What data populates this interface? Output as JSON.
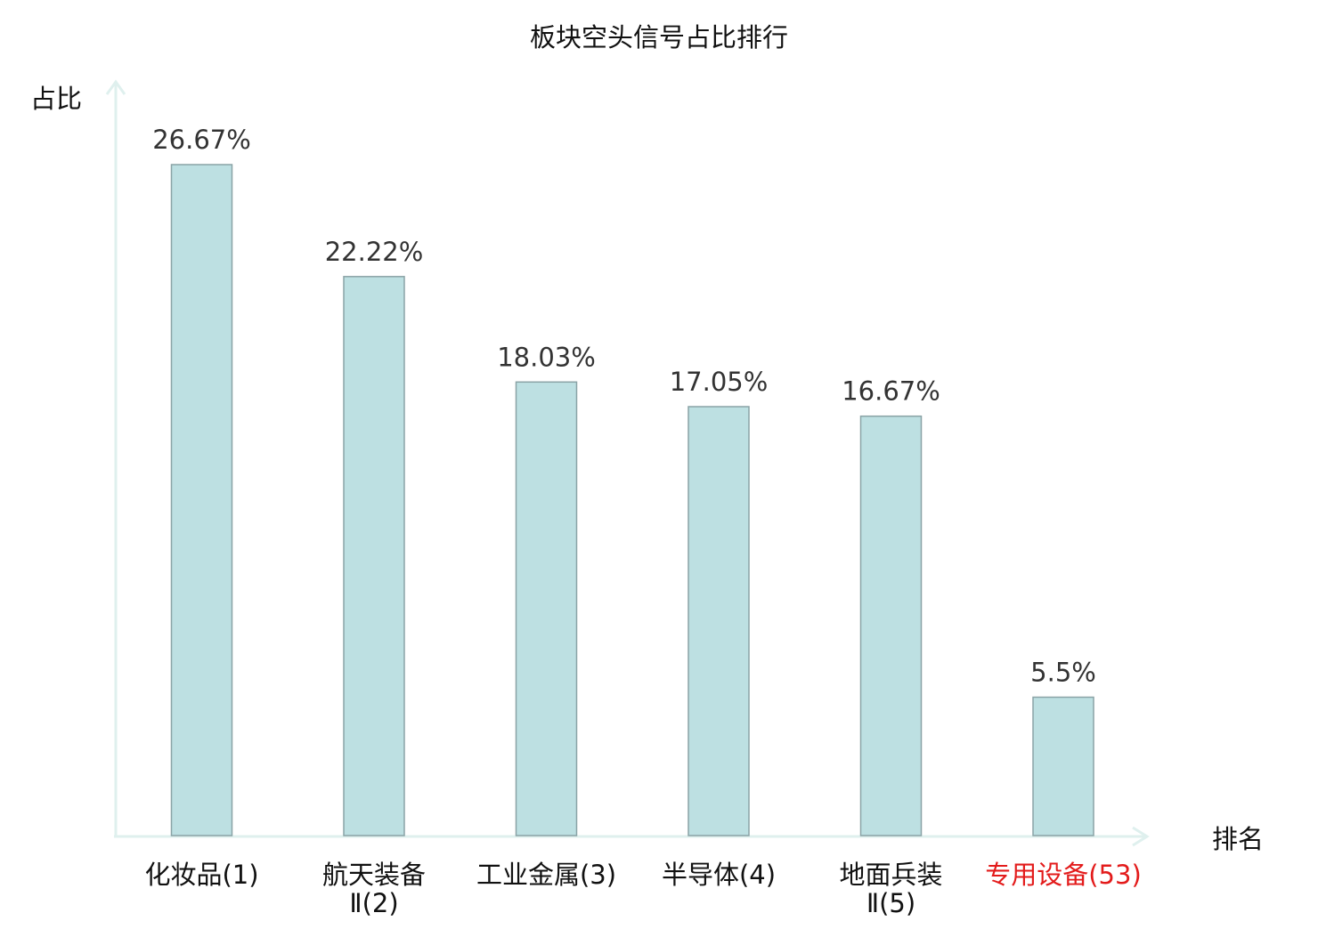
{
  "chart_data": {
    "type": "bar",
    "title": "板块空头信号占比排行",
    "ylabel": "占比",
    "xlabel": "排名",
    "categories": [
      [
        "化妆品(1)"
      ],
      [
        "航天装备",
        "Ⅱ(2)"
      ],
      [
        "工业金属(3)"
      ],
      [
        "半导体(4)"
      ],
      [
        "地面兵装",
        "Ⅱ(5)"
      ],
      [
        "专用设备(53)"
      ]
    ],
    "values": [
      26.67,
      22.22,
      18.03,
      17.05,
      16.67,
      5.5
    ],
    "value_labels": [
      "26.67%",
      "22.22%",
      "18.03%",
      "17.05%",
      "16.67%",
      "5.5%"
    ],
    "ylim": [
      0,
      26.67
    ],
    "grid": false,
    "highlight_category_index": 5,
    "colors": {
      "bar_fill": "#bde0e2",
      "bar_stroke": "#8aa3a6",
      "axis": "#dff0ee",
      "text": "#333333",
      "title": "#111111",
      "highlight": "#e31b1b"
    }
  }
}
